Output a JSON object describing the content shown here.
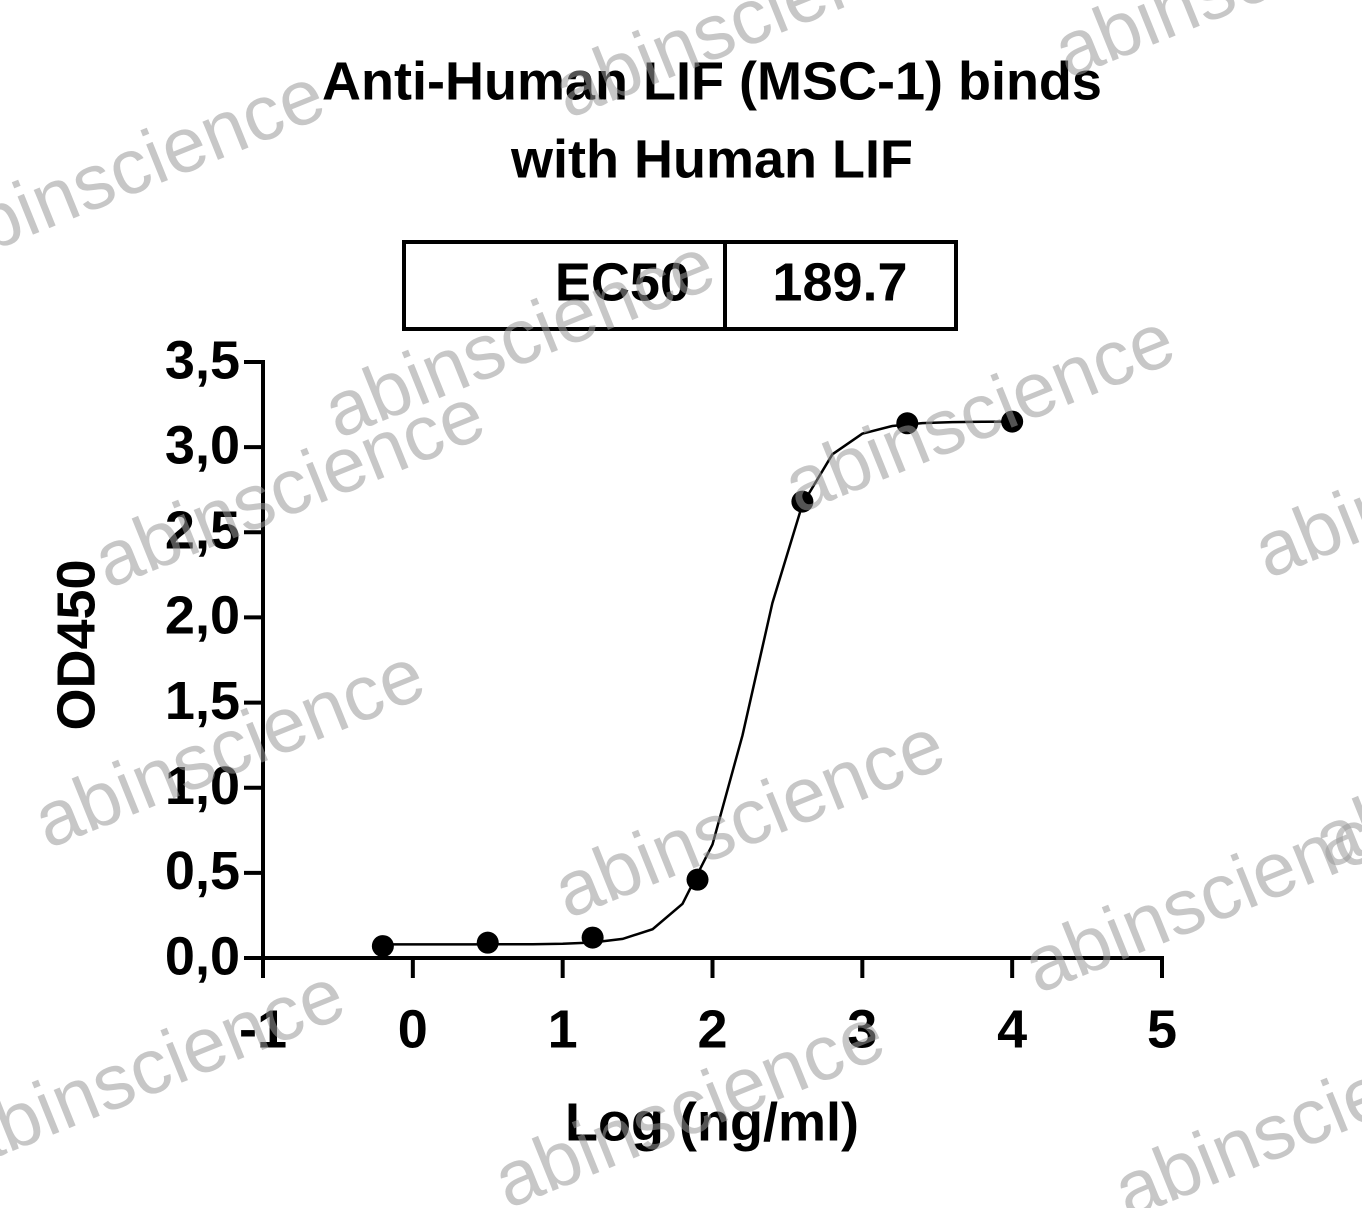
{
  "chart_data": {
    "type": "scatter",
    "title": [
      "Anti-Human LIF (MSC-1) binds",
      "with Human LIF"
    ],
    "table": {
      "label": "EC50",
      "value": "189.7"
    },
    "xlabel": "Log (ng/ml)",
    "ylabel": "OD450",
    "watermark": "abinscience",
    "series": [
      {
        "style": "markers",
        "color": "#000000",
        "x": [
          -0.2,
          0.5,
          1.2,
          1.9,
          2.6,
          3.3,
          4.0
        ],
        "values": [
          0.07,
          0.09,
          0.12,
          0.46,
          2.68,
          3.14,
          3.15
        ]
      },
      {
        "style": "line",
        "color": "#000000",
        "x": [
          -0.2,
          0,
          0.2,
          0.4,
          0.6,
          0.8,
          1.0,
          1.2,
          1.4,
          1.6,
          1.8,
          2.0,
          2.2,
          2.4,
          2.6,
          2.8,
          3.0,
          3.2,
          3.4,
          3.6,
          3.8,
          4.0
        ],
        "values": [
          0.08,
          0.08,
          0.08,
          0.08,
          0.081,
          0.081,
          0.084,
          0.091,
          0.112,
          0.169,
          0.318,
          0.667,
          1.308,
          2.085,
          2.664,
          2.958,
          3.079,
          3.124,
          3.141,
          3.147,
          3.149,
          3.15
        ]
      }
    ],
    "xlim": [
      -1,
      5
    ],
    "xticks": [
      -1,
      0,
      1,
      2,
      3,
      4,
      5
    ],
    "ylim": [
      0,
      3.5
    ],
    "yticks": [
      {
        "value": 0,
        "label": "0,0"
      },
      {
        "value": 0.5,
        "label": "0,5"
      },
      {
        "value": 1,
        "label": "1,0"
      },
      {
        "value": 1.5,
        "label": "1,5"
      },
      {
        "value": 2,
        "label": "2,0"
      },
      {
        "value": 2.5,
        "label": "2,5"
      },
      {
        "value": 3,
        "label": "3,0"
      },
      {
        "value": 3.5,
        "label": "3,5"
      }
    ]
  }
}
